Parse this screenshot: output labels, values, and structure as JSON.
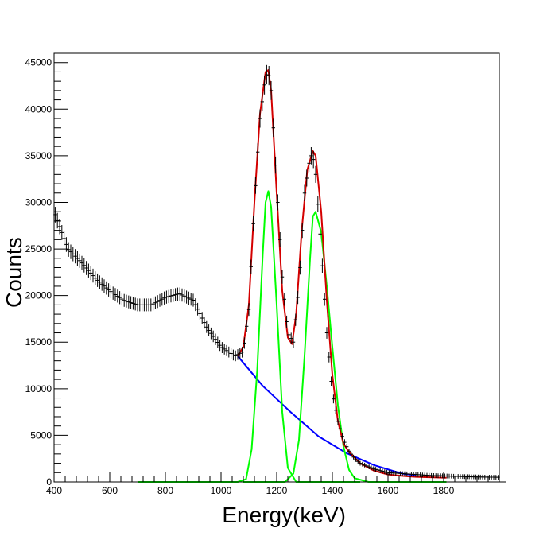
{
  "chart_data": {
    "type": "scatter",
    "title": "",
    "xlabel": "Energy(keV)",
    "ylabel": "Counts",
    "xlim": [
      400,
      2000
    ],
    "ylim": [
      0,
      46000
    ],
    "grid": false,
    "x_ticks": [
      {
        "value": 400,
        "label": "400"
      },
      {
        "value": 600,
        "label": "600"
      },
      {
        "value": 800,
        "label": "800"
      },
      {
        "value": 1000,
        "label": "1000"
      },
      {
        "value": 1200,
        "label": "1200"
      },
      {
        "value": 1400,
        "label": "1400"
      },
      {
        "value": 1600,
        "label": "1600"
      },
      {
        "value": 1800,
        "label": "1800"
      }
    ],
    "y_ticks": [
      {
        "value": 0,
        "label": "0"
      },
      {
        "value": 5000,
        "label": "5000"
      },
      {
        "value": 10000,
        "label": "10000"
      },
      {
        "value": 15000,
        "label": "15000"
      },
      {
        "value": 20000,
        "label": "20000"
      },
      {
        "value": 25000,
        "label": "25000"
      },
      {
        "value": 30000,
        "label": "30000"
      },
      {
        "value": 35000,
        "label": "35000"
      },
      {
        "value": 40000,
        "label": "40000"
      },
      {
        "value": 45000,
        "label": "45000"
      }
    ],
    "data_color": "#000000",
    "data_points": {
      "x": [
        400,
        450,
        500,
        550,
        600,
        650,
        700,
        750,
        800,
        850,
        900,
        950,
        1000,
        1050,
        1080,
        1100,
        1120,
        1140,
        1160,
        1170,
        1180,
        1200,
        1220,
        1240,
        1260,
        1280,
        1300,
        1320,
        1330,
        1340,
        1360,
        1380,
        1400,
        1420,
        1440,
        1460,
        1480,
        1500,
        1550,
        1600,
        1650,
        1700,
        1750,
        1800,
        1850,
        1900,
        1950,
        2000
      ],
      "y": [
        29000,
        25000,
        23500,
        21800,
        20500,
        19500,
        19000,
        19000,
        19800,
        20200,
        19500,
        16500,
        14500,
        13500,
        14000,
        18500,
        30000,
        39000,
        43500,
        44000,
        42000,
        32000,
        22000,
        16000,
        15000,
        21000,
        31000,
        35000,
        35000,
        33000,
        25000,
        16000,
        9500,
        6500,
        4500,
        3300,
        2500,
        2000,
        1400,
        1000,
        900,
        800,
        700,
        650,
        600,
        550,
        520,
        500
      ],
      "errors": [
        700
      ]
    },
    "series": [
      {
        "color": "#0000ff",
        "x": [
          1060,
          1150,
          1250,
          1350,
          1450,
          1550,
          1650,
          1700
        ],
        "y": [
          13500,
          10300,
          7500,
          4900,
          3100,
          1800,
          900,
          700
        ]
      },
      {
        "color": "#00ff00",
        "x": [
          700,
          1060,
          1090,
          1110,
          1130,
          1150,
          1160,
          1170,
          1180,
          1200,
          1220,
          1240,
          1270,
          1500
        ],
        "y": [
          0,
          0,
          300,
          3500,
          12000,
          24500,
          30000,
          31200,
          29500,
          19000,
          7500,
          1500,
          0,
          0
        ]
      },
      {
        "color": "#00ff00",
        "x": [
          1080,
          1230,
          1260,
          1280,
          1300,
          1320,
          1330,
          1340,
          1360,
          1380,
          1400,
          1420,
          1440,
          1460,
          1480,
          1530,
          1600,
          1700,
          1810
        ],
        "y": [
          0,
          0,
          900,
          4500,
          13500,
          24000,
          28500,
          29000,
          26800,
          21000,
          14500,
          8200,
          3800,
          1300,
          400,
          0,
          0,
          0,
          0
        ]
      },
      {
        "color": "#d40000",
        "x": [
          1060,
          1080,
          1100,
          1120,
          1140,
          1160,
          1170,
          1180,
          1200,
          1220,
          1240,
          1255,
          1270,
          1290,
          1310,
          1330,
          1340,
          1360,
          1380,
          1400,
          1420,
          1440,
          1460,
          1480,
          1500,
          1550,
          1600,
          1650,
          1700,
          1750,
          1810
        ],
        "y": [
          13500,
          14500,
          19000,
          30000,
          39500,
          44000,
          44200,
          42000,
          31000,
          20500,
          15500,
          14800,
          18000,
          27000,
          33500,
          35500,
          35000,
          29000,
          19500,
          11500,
          6500,
          4100,
          3200,
          2600,
          2000,
          1200,
          800,
          650,
          550,
          500,
          450
        ]
      }
    ]
  }
}
